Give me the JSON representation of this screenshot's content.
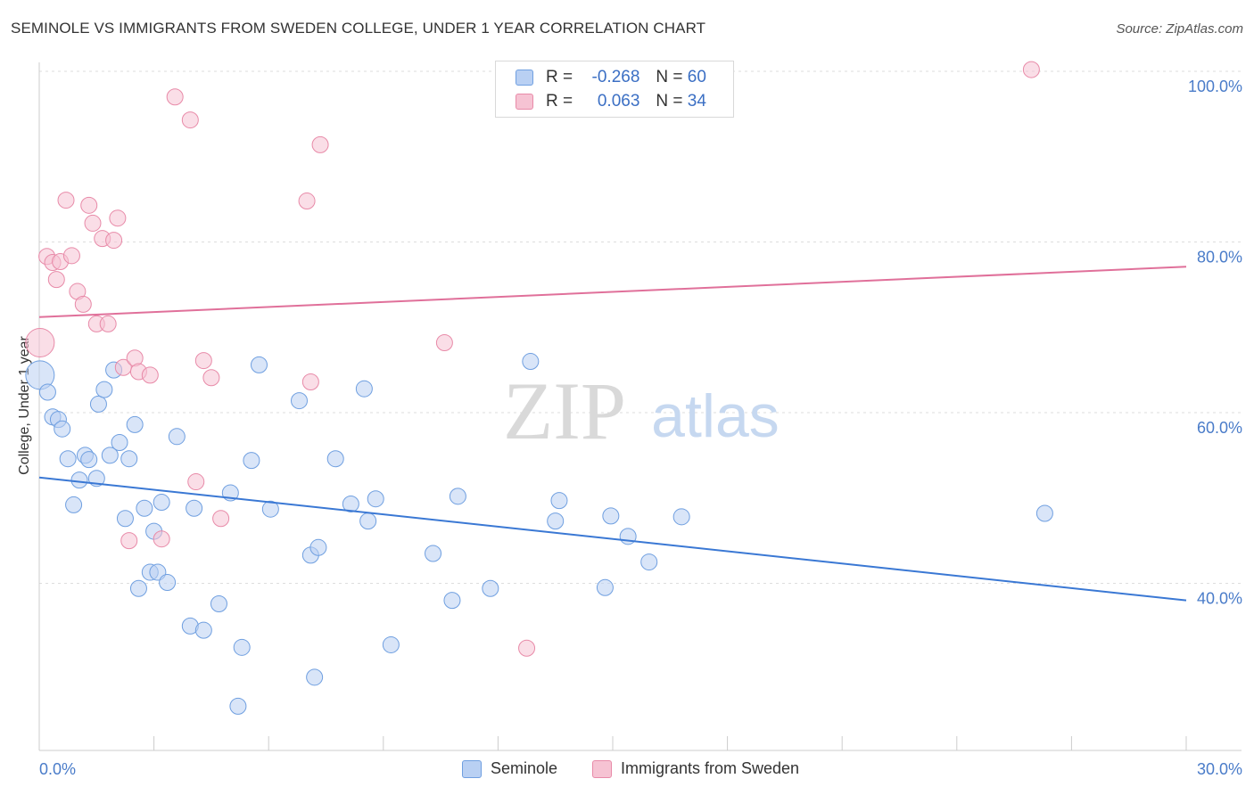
{
  "title": "SEMINOLE VS IMMIGRANTS FROM SWEDEN COLLEGE, UNDER 1 YEAR CORRELATION CHART",
  "source": "Source: ZipAtlas.com",
  "watermark": {
    "zip": "ZIP",
    "atlas": "atlas"
  },
  "legend": {
    "rows": [
      {
        "r_label": "R =",
        "r_value": "-0.268",
        "n_label": "N =",
        "n_value": "60",
        "color": "#6f9fe0",
        "fill": "#b9d0f3"
      },
      {
        "r_label": "R =",
        "r_value": "0.063",
        "n_label": "N =",
        "n_value": "34",
        "color": "#e88aa8",
        "fill": "#f6c3d3"
      }
    ]
  },
  "bottom_legend": {
    "seminole": "Seminole",
    "sweden": "Immigrants from Sweden"
  },
  "chart_data": {
    "type": "scatter",
    "xlabel": "",
    "ylabel": "College, Under 1 year",
    "xlim": [
      0,
      30
    ],
    "ylim": [
      22,
      102
    ],
    "x_tick_labels": [
      {
        "value": 0,
        "label": "0.0%"
      },
      {
        "value": 30,
        "label": "30.0%"
      }
    ],
    "y_tick_labels": [
      {
        "value": 100,
        "label": "100.0%"
      },
      {
        "value": 80,
        "label": "80.0%"
      },
      {
        "value": 60,
        "label": "60.0%"
      },
      {
        "value": 40,
        "label": "40.0%"
      }
    ],
    "grid": true,
    "series": [
      {
        "name": "Seminole",
        "color": "#6f9fe0",
        "fill": "#b9d0f3",
        "trend": {
          "x0": 0,
          "y0": 52.4,
          "x1": 30,
          "y1": 38.0,
          "color": "#3a78d4"
        },
        "points": [
          [
            0.02,
            64.4,
            16
          ],
          [
            0.22,
            62.4,
            9
          ],
          [
            0.35,
            59.5,
            9
          ],
          [
            0.5,
            59.2,
            9
          ],
          [
            0.6,
            58.1,
            9
          ],
          [
            0.75,
            54.6,
            9
          ],
          [
            0.9,
            49.2,
            9
          ],
          [
            1.05,
            52.1,
            9
          ],
          [
            1.2,
            55.0,
            9
          ],
          [
            1.3,
            54.5,
            9
          ],
          [
            1.5,
            52.3,
            9
          ],
          [
            1.55,
            61.0,
            9
          ],
          [
            1.7,
            62.7,
            9
          ],
          [
            1.85,
            55.0,
            9
          ],
          [
            1.95,
            65.0,
            9
          ],
          [
            2.1,
            56.5,
            9
          ],
          [
            2.25,
            47.6,
            9
          ],
          [
            2.35,
            54.6,
            9
          ],
          [
            2.5,
            58.6,
            9
          ],
          [
            2.6,
            39.4,
            9
          ],
          [
            2.75,
            48.8,
            9
          ],
          [
            2.9,
            41.3,
            9
          ],
          [
            3.0,
            46.1,
            9
          ],
          [
            3.1,
            41.3,
            9
          ],
          [
            3.2,
            49.5,
            9
          ],
          [
            3.35,
            40.1,
            9
          ],
          [
            3.6,
            57.2,
            9
          ],
          [
            3.95,
            35.0,
            9
          ],
          [
            4.05,
            48.8,
            9
          ],
          [
            4.3,
            34.5,
            9
          ],
          [
            4.7,
            37.6,
            9
          ],
          [
            5.0,
            50.6,
            9
          ],
          [
            5.2,
            25.6,
            9
          ],
          [
            5.3,
            32.5,
            9
          ],
          [
            5.55,
            54.4,
            9
          ],
          [
            5.75,
            65.6,
            9
          ],
          [
            6.05,
            48.7,
            9
          ],
          [
            6.8,
            61.4,
            9
          ],
          [
            7.1,
            43.3,
            9
          ],
          [
            7.2,
            29.0,
            9
          ],
          [
            7.3,
            44.2,
            9
          ],
          [
            7.75,
            54.6,
            9
          ],
          [
            8.15,
            49.3,
            9
          ],
          [
            8.5,
            62.8,
            9
          ],
          [
            8.6,
            47.3,
            9
          ],
          [
            8.8,
            49.9,
            9
          ],
          [
            9.2,
            32.8,
            9
          ],
          [
            10.3,
            43.5,
            9
          ],
          [
            10.8,
            38.0,
            9
          ],
          [
            10.95,
            50.2,
            9
          ],
          [
            11.8,
            39.4,
            9
          ],
          [
            12.85,
            66.0,
            9
          ],
          [
            13.5,
            47.3,
            9
          ],
          [
            13.6,
            49.7,
            9
          ],
          [
            14.8,
            39.5,
            9
          ],
          [
            14.95,
            47.9,
            9
          ],
          [
            15.4,
            45.5,
            9
          ],
          [
            15.95,
            42.5,
            9
          ],
          [
            16.8,
            47.8,
            9
          ],
          [
            26.3,
            48.2,
            9
          ]
        ]
      },
      {
        "name": "Immigrants from Sweden",
        "color": "#e88aa8",
        "fill": "#f6c3d3",
        "trend": {
          "x0": 0,
          "y0": 71.2,
          "x1": 30,
          "y1": 77.1,
          "color": "#e0709a"
        },
        "points": [
          [
            0.02,
            68.2,
            16
          ],
          [
            0.2,
            78.3,
            9
          ],
          [
            0.35,
            77.6,
            9
          ],
          [
            0.45,
            75.6,
            9
          ],
          [
            0.55,
            77.7,
            9
          ],
          [
            0.7,
            84.9,
            9
          ],
          [
            0.85,
            78.4,
            9
          ],
          [
            1.0,
            74.2,
            9
          ],
          [
            1.15,
            72.7,
            9
          ],
          [
            1.3,
            84.3,
            9
          ],
          [
            1.4,
            82.2,
            9
          ],
          [
            1.5,
            70.4,
            9
          ],
          [
            1.65,
            80.4,
            9
          ],
          [
            1.8,
            70.4,
            9
          ],
          [
            1.95,
            80.2,
            9
          ],
          [
            2.05,
            82.8,
            9
          ],
          [
            2.2,
            65.3,
            9
          ],
          [
            2.35,
            45.0,
            9
          ],
          [
            2.5,
            66.4,
            9
          ],
          [
            2.6,
            64.8,
            9
          ],
          [
            2.9,
            64.4,
            9
          ],
          [
            3.2,
            45.2,
            9
          ],
          [
            3.55,
            97.0,
            9
          ],
          [
            3.95,
            94.3,
            9
          ],
          [
            4.1,
            51.9,
            9
          ],
          [
            4.3,
            66.1,
            9
          ],
          [
            4.5,
            64.1,
            9
          ],
          [
            4.75,
            47.6,
            9
          ],
          [
            7.0,
            84.8,
            9
          ],
          [
            7.1,
            63.6,
            9
          ],
          [
            7.35,
            91.4,
            9
          ],
          [
            10.6,
            68.2,
            9
          ],
          [
            12.75,
            32.4,
            9
          ],
          [
            25.95,
            100.2,
            9
          ]
        ]
      }
    ]
  }
}
